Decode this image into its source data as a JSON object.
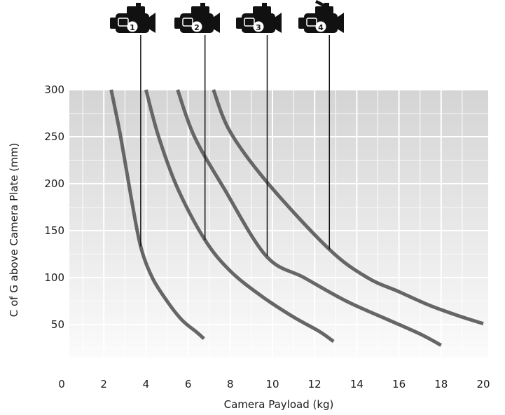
{
  "chart_data": {
    "type": "line",
    "xlabel": "Camera Payload (kg)",
    "ylabel": "C of G above Camera Plate (mm)",
    "xlim": [
      0,
      20
    ],
    "ylim": [
      0,
      300
    ],
    "x_ticks": [
      0,
      2,
      4,
      6,
      8,
      10,
      12,
      14,
      16,
      18,
      20
    ],
    "y_ticks": [
      50,
      100,
      150,
      200,
      250,
      300
    ],
    "grid": true,
    "legend": "camera icons above the plot",
    "series_color": "#666666",
    "series": [
      {
        "marker_label": "1",
        "x": [
          2.35,
          2.8,
          3.3,
          3.75,
          4.3,
          5.0,
          5.7,
          6.4,
          6.75
        ],
        "y": [
          300,
          250,
          185,
          133,
          100,
          75,
          55,
          42,
          35
        ]
      },
      {
        "marker_label": "2",
        "x": [
          4.0,
          4.6,
          5.5,
          6.8,
          8.0,
          9.5,
          11.0,
          12.2,
          12.9
        ],
        "y": [
          300,
          250,
          195,
          140,
          107,
          80,
          58,
          43,
          32
        ]
      },
      {
        "marker_label": "3",
        "x": [
          5.5,
          6.3,
          7.7,
          9.7,
          11.5,
          13.5,
          15.5,
          17.0,
          18.0
        ],
        "y": [
          300,
          250,
          195,
          123,
          100,
          75,
          55,
          40,
          28
        ]
      },
      {
        "marker_label": "4",
        "x": [
          7.2,
          8.0,
          9.8,
          12.7,
          14.5,
          16.0,
          17.5,
          19.0,
          20.0
        ],
        "y": [
          300,
          255,
          200,
          130,
          100,
          85,
          70,
          58,
          51
        ]
      }
    ],
    "markers": [
      {
        "label": "1",
        "x": 3.75,
        "y": 133
      },
      {
        "label": "2",
        "x": 6.8,
        "y": 140
      },
      {
        "label": "3",
        "x": 9.75,
        "y": 123
      },
      {
        "label": "4",
        "x": 12.7,
        "y": 130
      }
    ]
  }
}
